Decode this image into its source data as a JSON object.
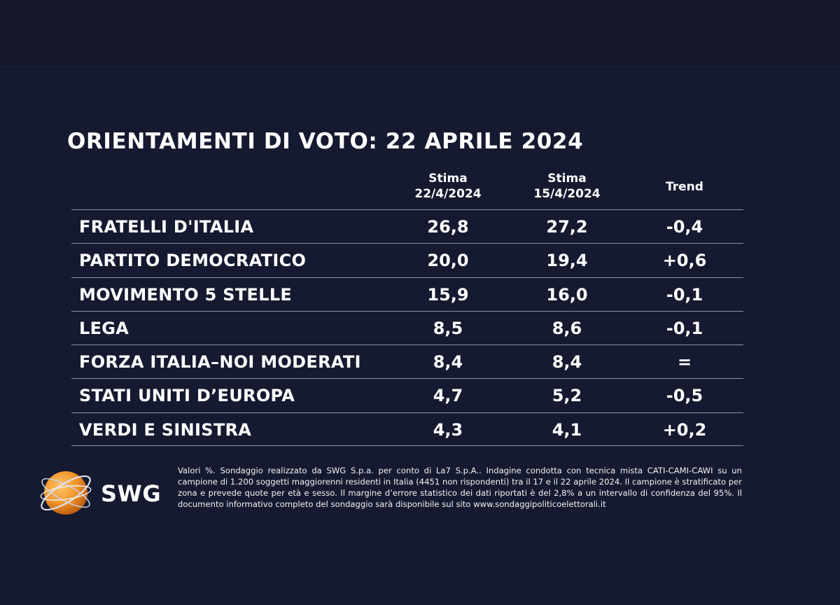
{
  "title": "ORIENTAMENTI DI VOTO: 22 APRILE 2024",
  "columns": {
    "current": {
      "line1": "Stima",
      "line2": "22/4/2024"
    },
    "previous": {
      "line1": "Stima",
      "line2": "15/4/2024"
    },
    "trend": "Trend"
  },
  "chart_data": {
    "type": "table",
    "title": "ORIENTAMENTI DI VOTO: 22 APRILE 2024",
    "columns": [
      "",
      "Stima 22/4/2024",
      "Stima 15/4/2024",
      "Trend"
    ],
    "rows": [
      {
        "party": "FRATELLI D'ITALIA",
        "current": "26,8",
        "previous": "27,2",
        "trend": "-0,4"
      },
      {
        "party": "PARTITO DEMOCRATICO",
        "current": "20,0",
        "previous": "19,4",
        "trend": "+0,6"
      },
      {
        "party": "MOVIMENTO 5 STELLE",
        "current": "15,9",
        "previous": "16,0",
        "trend": "-0,1"
      },
      {
        "party": "LEGA",
        "current": "8,5",
        "previous": "8,6",
        "trend": "-0,1"
      },
      {
        "party": "FORZA ITALIA–NOI MODERATI",
        "current": "8,4",
        "previous": "8,4",
        "trend": "="
      },
      {
        "party": "STATI UNITI D’EUROPA",
        "current": "4,7",
        "previous": "5,2",
        "trend": "-0,5"
      },
      {
        "party": "VERDI E SINISTRA",
        "current": "4,3",
        "previous": "4,1",
        "trend": "+0,2"
      }
    ]
  },
  "logo": {
    "text": "SWG"
  },
  "footnote": "Valori %. Sondaggio realizzato da SWG S.p.a. per conto di La7 S.p.A.. Indagine condotta con tecnica mista CATI-CAMI-CAWI su un campione di 1.200 soggetti maggiorenni residenti in Italia (4451 non rispondenti) tra il 17 e il 22 aprile 2024. Il campione è stratificato per zona e prevede quote per età e sesso. Il margine d’errore statistico dei dati riportati è del 2,8% a un intervallo di confidenza del 95%. Il documento informativo completo del sondaggio sarà disponibile sul sito www.sondaggipoliticoelettorali.it",
  "colors": {
    "background": "#161a30",
    "text": "#ffffff",
    "logo_orange": "#f0962a"
  }
}
